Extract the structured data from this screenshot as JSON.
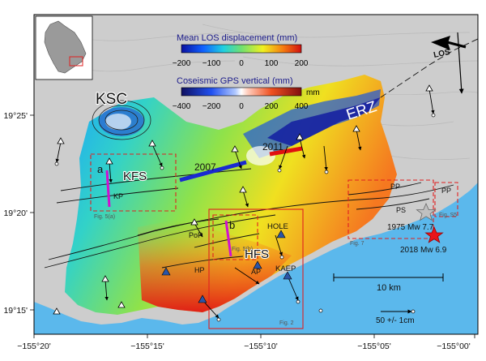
{
  "axes": {
    "x_ticks": [
      "−155°20'",
      "−155°15'",
      "−155°10'",
      "−155°05'",
      "−155°00'"
    ],
    "y_ticks": [
      "19°25'",
      "19°20'",
      "19°15'"
    ]
  },
  "colorbars": [
    {
      "title": "Mean LOS displacement (mm)",
      "ticks": [
        "−200",
        "−100",
        "0",
        "100",
        "200"
      ]
    },
    {
      "title": "Coseismic GPS vertical (mm)",
      "ticks": [
        "−400",
        "−200",
        "0",
        "200",
        "400"
      ],
      "unit": "mm"
    }
  ],
  "labels": {
    "ksc": "KSC",
    "erz": "ERZ",
    "kfs": "KFS",
    "hfs": "HFS",
    "y2007": "2007",
    "y2011": "2011",
    "kp": "KP",
    "pop": "PoP",
    "hp": "HP",
    "ap": "AP",
    "hole": "HOLE",
    "kaep": "KAEP",
    "pp1": "PP",
    "ps": "PS",
    "pp2": "PP",
    "box_a": "a",
    "box_b": "b"
  },
  "boxes": {
    "fig5a": "Fig. 5(a)",
    "fig5b": "Fig. 5(b)",
    "fig2": "Fig. 2",
    "fig7": "Fig. 7",
    "figs5": "Fig. S5"
  },
  "earthquakes": [
    {
      "label": "1975 Mw 7.7",
      "color": "#c0c0c0"
    },
    {
      "label": "2018 Mw 6.9",
      "color": "#e8141a"
    }
  ],
  "scalebar": {
    "label": "10 km"
  },
  "gps_legend": {
    "label": "50 +/- 1cm"
  },
  "los_arrow": {
    "label": "LOS"
  },
  "colors": {
    "ocean": "#5bb8ec",
    "land": "#cfcfcf"
  }
}
